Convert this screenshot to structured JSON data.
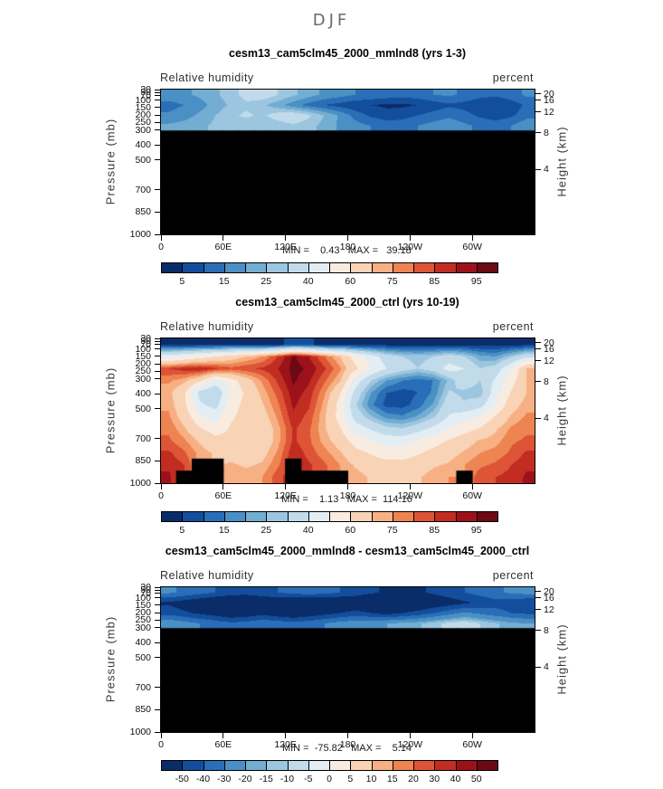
{
  "season": "DJF",
  "axes": {
    "left_label": "Pressure (mb)",
    "right_label": "Height (km)",
    "pressure_ticks": [
      30,
      50,
      70,
      100,
      150,
      200,
      250,
      300,
      400,
      500,
      700,
      850,
      1000
    ],
    "pressure_range": [
      30,
      1000
    ],
    "height_ticks": [
      20,
      16,
      12,
      8,
      4
    ],
    "lon_tick_labels": [
      "0",
      "60E",
      "120E",
      "180",
      "120W",
      "60W"
    ],
    "lon_tick_values": [
      0,
      60,
      120,
      180,
      240,
      300
    ],
    "lon_range": [
      0,
      360
    ]
  },
  "panels": [
    {
      "title": "cesm13_cam5clm45_2000_mmlnd8 (yrs 1-3)",
      "field_label": "Relative humidity",
      "units_label": "percent",
      "minmax": "MIN =    0.43   MAX =   39.18"
    },
    {
      "title": "cesm13_cam5clm45_2000_ctrl (yrs 10-19)",
      "field_label": "Relative humidity",
      "units_label": "percent",
      "minmax": "MIN =    1.13   MAX =  114.16"
    },
    {
      "title": "cesm13_cam5clm45_2000_mmlnd8 - cesm13_cam5clm45_2000_ctrl",
      "field_label": "Relative humidity",
      "units_label": "percent",
      "minmax": "MIN =  -75.82   MAX =    5.14"
    }
  ],
  "chart_data": {
    "type": "heatmap",
    "subtype": "filled-contour-pressure-longitude-section",
    "title": "DJF",
    "xlabel": "Longitude",
    "ylabel_left": "Pressure (mb)",
    "ylabel_right": "Height (km)",
    "x_ticks": [
      "0",
      "60E",
      "120E",
      "180",
      "120W",
      "60W"
    ],
    "x_tick_values": [
      0,
      60,
      120,
      180,
      240,
      300
    ],
    "x_range": [
      0,
      360
    ],
    "pressure_ticks": [
      30,
      50,
      70,
      100,
      150,
      200,
      250,
      300,
      400,
      500,
      700,
      850,
      1000
    ],
    "pressure_range": [
      30,
      1000
    ],
    "height_ticks": [
      20,
      16,
      12,
      8,
      4
    ],
    "colors": [
      "#0a2d6a",
      "#134e9d",
      "#2a6eb7",
      "#4a90c5",
      "#73aed2",
      "#9cc6df",
      "#c2dbeb",
      "#e3edf4",
      "#f8ece1",
      "#f9d3b5",
      "#f7b084",
      "#ee8452",
      "#dd5436",
      "#c22d22",
      "#9c121b",
      "#6b0a14"
    ],
    "mask_color": "#000000",
    "panels": [
      {
        "title": "cesm13_cam5clm45_2000_mmlnd8 (yrs 1-3)",
        "field": "Relative humidity",
        "units": "percent",
        "min": 0.43,
        "max": 39.18,
        "levels": [
          5,
          10,
          15,
          20,
          25,
          30,
          40,
          50,
          60,
          70,
          75,
          80,
          85,
          90,
          95
        ],
        "colorbar_labels": [
          5,
          15,
          25,
          40,
          60,
          75,
          85,
          95
        ],
        "rows": 14,
        "note_masked": "all rows below row 3 are missing data (black)",
        "grid": [
          [
            18,
            19,
            21,
            24,
            28,
            32,
            34,
            30,
            26,
            22,
            19,
            17,
            15,
            14,
            13,
            12,
            13,
            15,
            16,
            14,
            12,
            11,
            13,
            16
          ],
          [
            13,
            15,
            18,
            22,
            26,
            29,
            26,
            22,
            17,
            13,
            10,
            8,
            6,
            5,
            4,
            4,
            5,
            7,
            9,
            8,
            6,
            5,
            7,
            11
          ],
          [
            16,
            18,
            21,
            25,
            29,
            31,
            29,
            33,
            35,
            31,
            25,
            19,
            13,
            9,
            7,
            8,
            10,
            12,
            14,
            12,
            9,
            7,
            9,
            13
          ],
          [
            21,
            22,
            24,
            26,
            28,
            27,
            25,
            27,
            29,
            27,
            23,
            19,
            17,
            15,
            13,
            13,
            15,
            17,
            18,
            16,
            14,
            13,
            15,
            19
          ]
        ],
        "mask_cells": []
      },
      {
        "title": "cesm13_cam5clm45_2000_ctrl (yrs 10-19)",
        "field": "Relative humidity",
        "units": "percent",
        "min": 1.13,
        "max": 114.16,
        "levels": [
          5,
          10,
          15,
          20,
          25,
          30,
          40,
          50,
          60,
          70,
          75,
          80,
          85,
          90,
          95
        ],
        "colorbar_labels": [
          5,
          15,
          25,
          40,
          60,
          75,
          85,
          95
        ],
        "rows": 12,
        "grid": [
          [
            3,
            3,
            3,
            3,
            3,
            3,
            3,
            3,
            8,
            6,
            3,
            3,
            3,
            3,
            3,
            3,
            3,
            3,
            3,
            3,
            3,
            3,
            3,
            3
          ],
          [
            45,
            50,
            55,
            60,
            65,
            70,
            75,
            85,
            96,
            90,
            80,
            70,
            55,
            45,
            35,
            30,
            28,
            30,
            35,
            30,
            22,
            20,
            28,
            38
          ],
          [
            85,
            88,
            90,
            86,
            82,
            84,
            86,
            90,
            97,
            94,
            86,
            76,
            62,
            50,
            40,
            34,
            30,
            34,
            44,
            40,
            30,
            34,
            50,
            70
          ],
          [
            76,
            72,
            62,
            46,
            56,
            66,
            76,
            86,
            96,
            91,
            81,
            71,
            46,
            30,
            20,
            15,
            12,
            15,
            26,
            36,
            30,
            42,
            56,
            70
          ],
          [
            72,
            62,
            36,
            30,
            52,
            62,
            72,
            82,
            93,
            88,
            76,
            61,
            36,
            20,
            10,
            8,
            10,
            16,
            31,
            28,
            26,
            46,
            61,
            70
          ],
          [
            74,
            62,
            42,
            36,
            56,
            63,
            69,
            79,
            91,
            86,
            73,
            56,
            31,
            16,
            8,
            8,
            12,
            21,
            36,
            31,
            36,
            51,
            66,
            73
          ],
          [
            76,
            66,
            52,
            46,
            59,
            63,
            66,
            76,
            89,
            83,
            71,
            56,
            36,
            26,
            18,
            16,
            21,
            29,
            41,
            46,
            51,
            61,
            71,
            76
          ],
          [
            79,
            71,
            61,
            56,
            61,
            61,
            63,
            73,
            86,
            81,
            71,
            61,
            46,
            39,
            33,
            31,
            36,
            43,
            51,
            56,
            61,
            69,
            76,
            79
          ],
          [
            81,
            76,
            69,
            63,
            63,
            61,
            63,
            73,
            86,
            81,
            73,
            66,
            56,
            51,
            46,
            46,
            51,
            56,
            61,
            66,
            71,
            73,
            79,
            81
          ],
          [
            86,
            81,
            73,
            69,
            67,
            65,
            67,
            76,
            89,
            83,
            77,
            71,
            63,
            59,
            56,
            56,
            59,
            63,
            67,
            71,
            75,
            77,
            81,
            86
          ],
          [
            89,
            85,
            79,
            73,
            71,
            69,
            71,
            79,
            91,
            86,
            81,
            75,
            69,
            65,
            63,
            63,
            65,
            69,
            71,
            75,
            79,
            81,
            85,
            89
          ],
          [
            91,
            87,
            83,
            79,
            75,
            73,
            75,
            83,
            93,
            89,
            85,
            79,
            73,
            69,
            67,
            67,
            69,
            73,
            75,
            79,
            83,
            85,
            87,
            91
          ]
        ],
        "mask_cells": [
          [
            10,
            2
          ],
          [
            10,
            3
          ],
          [
            10,
            8
          ],
          [
            11,
            1
          ],
          [
            11,
            2
          ],
          [
            11,
            3
          ],
          [
            11,
            8
          ],
          [
            11,
            9
          ],
          [
            11,
            10
          ],
          [
            11,
            11
          ],
          [
            11,
            19
          ]
        ]
      },
      {
        "title": "cesm13_cam5clm45_2000_mmlnd8 - cesm13_cam5clm45_2000_ctrl",
        "field": "Relative humidity",
        "units": "percent",
        "min": -75.82,
        "max": 5.14,
        "levels": [
          -50,
          -40,
          -30,
          -20,
          -15,
          -10,
          -5,
          0,
          5,
          10,
          15,
          20,
          30,
          40,
          50
        ],
        "colorbar_labels": [
          -50,
          -40,
          -30,
          -20,
          -15,
          -10,
          -5,
          0,
          5,
          10,
          15,
          20,
          30,
          40,
          50
        ],
        "rows": 14,
        "note_masked": "all rows below row 3 are missing data (black)",
        "grid": [
          [
            -28,
            -32,
            -36,
            -40,
            -44,
            -46,
            -44,
            -40,
            -36,
            -34,
            -36,
            -40,
            -44,
            -48,
            -52,
            -54,
            -52,
            -48,
            -44,
            -40,
            -36,
            -32,
            -28,
            -26
          ],
          [
            -52,
            -56,
            -60,
            -64,
            -66,
            -64,
            -60,
            -62,
            -66,
            -68,
            -66,
            -64,
            -62,
            -66,
            -68,
            -66,
            -64,
            -60,
            -56,
            -52,
            -48,
            -44,
            -46,
            -50
          ],
          [
            -44,
            -48,
            -52,
            -56,
            -60,
            -58,
            -54,
            -58,
            -62,
            -58,
            -54,
            -50,
            -46,
            -50,
            -54,
            -50,
            -46,
            -40,
            -34,
            -28,
            -32,
            -36,
            -40,
            -42
          ],
          [
            -22,
            -26,
            -30,
            -34,
            -38,
            -36,
            -32,
            -34,
            -36,
            -34,
            -30,
            -26,
            -24,
            -22,
            -20,
            -18,
            -16,
            -12,
            -8,
            -6,
            -10,
            -14,
            -18,
            -20
          ]
        ],
        "mask_cells": []
      }
    ]
  }
}
